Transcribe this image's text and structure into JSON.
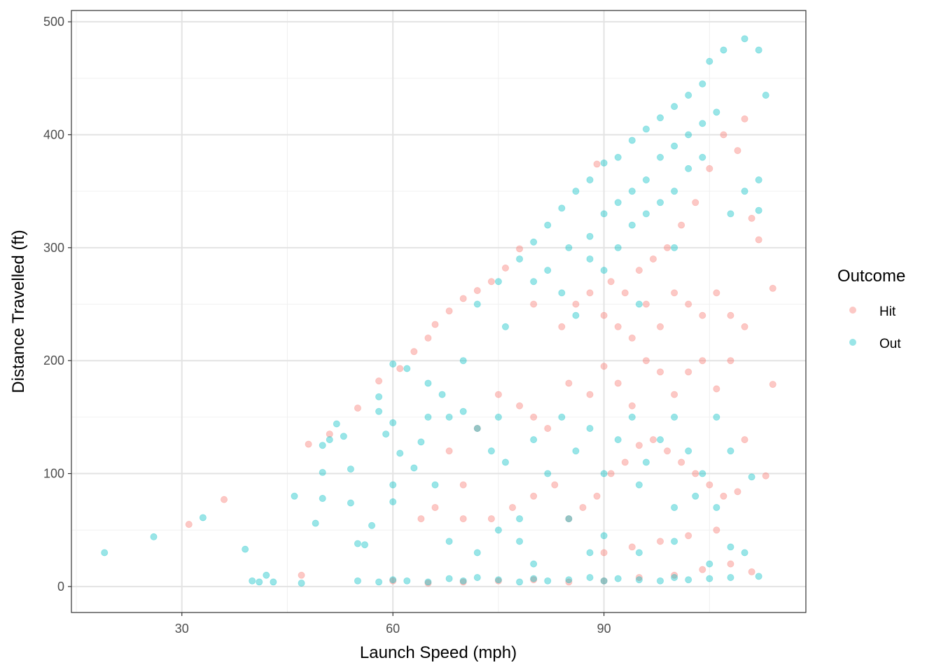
{
  "chart_data": {
    "type": "scatter",
    "xlabel": "Launch Speed (mph)",
    "ylabel": "Distance Travelled (ft)",
    "xlim": [
      14.3,
      118.7
    ],
    "ylim": [
      -23,
      510
    ],
    "x_ticks": [
      30,
      60,
      90
    ],
    "y_ticks": [
      0,
      100,
      200,
      300,
      400,
      500
    ],
    "grid": true,
    "legend": {
      "title": "Outcome",
      "placement": "right"
    },
    "point_alpha": 0.4,
    "series": [
      {
        "name": "Hit",
        "color": "#F8766D",
        "points": [
          [
            31,
            55
          ],
          [
            36,
            77
          ],
          [
            47,
            10
          ],
          [
            48,
            126
          ],
          [
            51,
            135
          ],
          [
            55,
            158
          ],
          [
            58,
            182
          ],
          [
            61,
            193
          ],
          [
            63,
            208
          ],
          [
            65,
            220
          ],
          [
            66,
            232
          ],
          [
            68,
            244
          ],
          [
            70,
            255
          ],
          [
            72,
            262
          ],
          [
            74,
            270
          ],
          [
            76,
            282
          ],
          [
            78,
            299
          ],
          [
            80,
            250
          ],
          [
            84,
            230
          ],
          [
            86,
            250
          ],
          [
            88,
            260
          ],
          [
            90,
            240
          ],
          [
            92,
            230
          ],
          [
            94,
            220
          ],
          [
            96,
            250
          ],
          [
            98,
            230
          ],
          [
            100,
            260
          ],
          [
            102,
            250
          ],
          [
            104,
            240
          ],
          [
            106,
            260
          ],
          [
            108,
            240
          ],
          [
            110,
            230
          ],
          [
            114,
            264
          ],
          [
            114,
            179
          ],
          [
            113,
            98
          ],
          [
            112,
            307
          ],
          [
            111,
            326
          ],
          [
            110,
            414
          ],
          [
            109,
            386
          ],
          [
            107,
            400
          ],
          [
            105,
            370
          ],
          [
            103,
            340
          ],
          [
            101,
            320
          ],
          [
            99,
            300
          ],
          [
            97,
            290
          ],
          [
            95,
            280
          ],
          [
            93,
            260
          ],
          [
            91,
            270
          ],
          [
            89,
            374
          ],
          [
            68,
            120
          ],
          [
            70,
            90
          ],
          [
            72,
            140
          ],
          [
            75,
            170
          ],
          [
            78,
            160
          ],
          [
            80,
            150
          ],
          [
            82,
            140
          ],
          [
            85,
            180
          ],
          [
            88,
            170
          ],
          [
            90,
            195
          ],
          [
            92,
            180
          ],
          [
            94,
            160
          ],
          [
            96,
            200
          ],
          [
            98,
            190
          ],
          [
            100,
            170
          ],
          [
            102,
            190
          ],
          [
            104,
            200
          ],
          [
            106,
            175
          ],
          [
            108,
            200
          ],
          [
            110,
            130
          ],
          [
            109,
            84
          ],
          [
            107,
            80
          ],
          [
            105,
            90
          ],
          [
            103,
            100
          ],
          [
            101,
            110
          ],
          [
            99,
            120
          ],
          [
            97,
            130
          ],
          [
            95,
            125
          ],
          [
            93,
            110
          ],
          [
            91,
            100
          ],
          [
            89,
            80
          ],
          [
            87,
            70
          ],
          [
            85,
            60
          ],
          [
            83,
            90
          ],
          [
            80,
            80
          ],
          [
            77,
            70
          ],
          [
            74,
            60
          ],
          [
            70,
            60
          ],
          [
            66,
            70
          ],
          [
            64,
            60
          ],
          [
            60,
            5
          ],
          [
            65,
            3
          ],
          [
            70,
            4
          ],
          [
            75,
            5
          ],
          [
            80,
            6
          ],
          [
            85,
            4
          ],
          [
            90,
            5
          ],
          [
            95,
            8
          ],
          [
            100,
            10
          ],
          [
            104,
            15
          ],
          [
            108,
            20
          ],
          [
            111,
            13
          ],
          [
            106,
            50
          ],
          [
            102,
            45
          ],
          [
            98,
            40
          ],
          [
            94,
            35
          ],
          [
            90,
            30
          ]
        ]
      },
      {
        "name": "Out",
        "color": "#00BFC4",
        "points": [
          [
            19,
            30
          ],
          [
            26,
            44
          ],
          [
            33,
            61
          ],
          [
            39,
            33
          ],
          [
            40,
            5
          ],
          [
            41,
            4
          ],
          [
            42,
            10
          ],
          [
            43,
            4
          ],
          [
            46,
            80
          ],
          [
            47,
            3
          ],
          [
            49,
            56
          ],
          [
            50,
            78
          ],
          [
            50,
            101
          ],
          [
            50,
            125
          ],
          [
            51,
            130
          ],
          [
            52,
            144
          ],
          [
            53,
            133
          ],
          [
            54,
            104
          ],
          [
            54,
            74
          ],
          [
            55,
            38
          ],
          [
            56,
            37
          ],
          [
            57,
            54
          ],
          [
            58,
            155
          ],
          [
            58,
            168
          ],
          [
            59,
            135
          ],
          [
            60,
            197
          ],
          [
            60,
            145
          ],
          [
            60,
            90
          ],
          [
            60,
            75
          ],
          [
            61,
            118
          ],
          [
            62,
            193
          ],
          [
            63,
            105
          ],
          [
            64,
            128
          ],
          [
            65,
            180
          ],
          [
            66,
            90
          ],
          [
            67,
            170
          ],
          [
            68,
            150
          ],
          [
            70,
            155
          ],
          [
            72,
            140
          ],
          [
            74,
            120
          ],
          [
            75,
            150
          ],
          [
            76,
            110
          ],
          [
            78,
            60
          ],
          [
            80,
            130
          ],
          [
            82,
            100
          ],
          [
            84,
            150
          ],
          [
            86,
            120
          ],
          [
            88,
            140
          ],
          [
            90,
            100
          ],
          [
            92,
            130
          ],
          [
            94,
            150
          ],
          [
            96,
            110
          ],
          [
            98,
            130
          ],
          [
            100,
            150
          ],
          [
            102,
            120
          ],
          [
            104,
            100
          ],
          [
            106,
            150
          ],
          [
            108,
            120
          ],
          [
            55,
            5
          ],
          [
            58,
            4
          ],
          [
            60,
            6
          ],
          [
            62,
            5
          ],
          [
            65,
            4
          ],
          [
            68,
            7
          ],
          [
            70,
            5
          ],
          [
            72,
            8
          ],
          [
            75,
            6
          ],
          [
            78,
            4
          ],
          [
            80,
            7
          ],
          [
            82,
            5
          ],
          [
            85,
            6
          ],
          [
            88,
            8
          ],
          [
            90,
            5
          ],
          [
            92,
            7
          ],
          [
            95,
            6
          ],
          [
            98,
            5
          ],
          [
            100,
            8
          ],
          [
            102,
            6
          ],
          [
            105,
            7
          ],
          [
            108,
            8
          ],
          [
            112,
            9
          ],
          [
            72,
            250
          ],
          [
            75,
            270
          ],
          [
            78,
            290
          ],
          [
            80,
            305
          ],
          [
            82,
            320
          ],
          [
            84,
            335
          ],
          [
            86,
            350
          ],
          [
            88,
            360
          ],
          [
            90,
            375
          ],
          [
            92,
            380
          ],
          [
            94,
            395
          ],
          [
            96,
            405
          ],
          [
            98,
            415
          ],
          [
            100,
            425
          ],
          [
            102,
            435
          ],
          [
            104,
            445
          ],
          [
            105,
            465
          ],
          [
            107,
            475
          ],
          [
            110,
            485
          ],
          [
            112,
            475
          ],
          [
            113,
            435
          ],
          [
            85,
            300
          ],
          [
            88,
            310
          ],
          [
            90,
            330
          ],
          [
            92,
            340
          ],
          [
            94,
            350
          ],
          [
            96,
            360
          ],
          [
            98,
            380
          ],
          [
            100,
            390
          ],
          [
            102,
            400
          ],
          [
            104,
            410
          ],
          [
            106,
            420
          ],
          [
            90,
            280
          ],
          [
            92,
            300
          ],
          [
            94,
            320
          ],
          [
            96,
            330
          ],
          [
            98,
            340
          ],
          [
            100,
            350
          ],
          [
            102,
            370
          ],
          [
            104,
            380
          ],
          [
            108,
            330
          ],
          [
            110,
            350
          ],
          [
            112,
            360
          ],
          [
            112,
            333
          ],
          [
            111,
            97
          ],
          [
            80,
            270
          ],
          [
            82,
            280
          ],
          [
            84,
            260
          ],
          [
            86,
            240
          ],
          [
            88,
            290
          ],
          [
            95,
            250
          ],
          [
            100,
            300
          ],
          [
            76,
            230
          ],
          [
            70,
            200
          ],
          [
            65,
            150
          ],
          [
            68,
            40
          ],
          [
            72,
            30
          ],
          [
            75,
            50
          ],
          [
            78,
            40
          ],
          [
            80,
            20
          ],
          [
            85,
            60
          ],
          [
            88,
            30
          ],
          [
            90,
            45
          ],
          [
            95,
            30
          ],
          [
            100,
            40
          ],
          [
            105,
            20
          ],
          [
            108,
            35
          ],
          [
            110,
            30
          ],
          [
            95,
            90
          ],
          [
            100,
            70
          ],
          [
            103,
            80
          ],
          [
            106,
            70
          ]
        ]
      }
    ]
  }
}
